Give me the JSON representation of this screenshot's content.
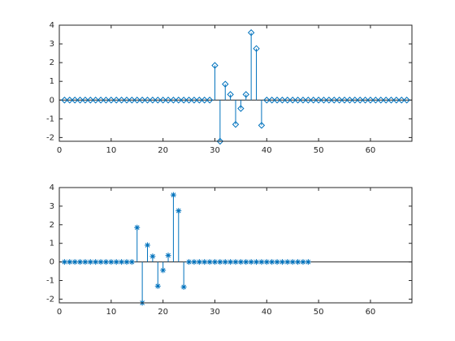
{
  "chart_data": [
    {
      "type": "stem",
      "marker": "diamond",
      "color": "#0072bd",
      "box": true,
      "x": [
        1,
        2,
        3,
        4,
        5,
        6,
        7,
        8,
        9,
        10,
        11,
        12,
        13,
        14,
        15,
        16,
        17,
        18,
        19,
        20,
        21,
        22,
        23,
        24,
        25,
        26,
        27,
        28,
        29,
        30,
        31,
        32,
        33,
        34,
        35,
        36,
        37,
        38,
        39,
        40,
        41,
        42,
        43,
        44,
        45,
        46,
        47,
        48,
        49,
        50,
        51,
        52,
        53,
        54,
        55,
        56,
        57,
        58,
        59,
        60,
        61,
        62,
        63,
        64,
        65,
        66,
        67
      ],
      "values": [
        0,
        0,
        0,
        0,
        0,
        0,
        0,
        0,
        0,
        0,
        0,
        0,
        0,
        0,
        0,
        0,
        0,
        0,
        0,
        0,
        0,
        0,
        0,
        0,
        0,
        0,
        0,
        0,
        0,
        1.85,
        -2.2,
        0.85,
        0.3,
        -1.3,
        -0.45,
        0.3,
        3.6,
        2.75,
        -1.35,
        0,
        0,
        0,
        0,
        0,
        0,
        0,
        0,
        0,
        0,
        0,
        0,
        0,
        0,
        0,
        0,
        0,
        0,
        0,
        0,
        0,
        0,
        0,
        0,
        0,
        0,
        0,
        0
      ],
      "xlim": [
        0,
        68
      ],
      "xticks": [
        0,
        10,
        20,
        30,
        40,
        50,
        60
      ],
      "ylim": [
        -2.2,
        4
      ],
      "yticks": [
        -2,
        -1,
        0,
        1,
        2,
        3,
        4
      ]
    },
    {
      "type": "stem",
      "marker": "asterisk",
      "color": "#0072bd",
      "box": true,
      "x": [
        1,
        2,
        3,
        4,
        5,
        6,
        7,
        8,
        9,
        10,
        11,
        12,
        13,
        14,
        15,
        16,
        17,
        18,
        19,
        20,
        21,
        22,
        23,
        24,
        25,
        26,
        27,
        28,
        29,
        30,
        31,
        32,
        33,
        34,
        35,
        36,
        37,
        38,
        39,
        40,
        41,
        42,
        43,
        44,
        45,
        46,
        47,
        48
      ],
      "values": [
        0,
        0,
        0,
        0,
        0,
        0,
        0,
        0,
        0,
        0,
        0,
        0,
        0,
        0,
        1.85,
        -2.2,
        0.9,
        0.3,
        -1.3,
        -0.45,
        0.35,
        3.6,
        2.75,
        -1.35,
        0,
        0,
        0,
        0,
        0,
        0,
        0,
        0,
        0,
        0,
        0,
        0,
        0,
        0,
        0,
        0,
        0,
        0,
        0,
        0,
        0,
        0,
        0,
        0
      ],
      "xlim": [
        0,
        68
      ],
      "xticks": [
        0,
        10,
        20,
        30,
        40,
        50,
        60
      ],
      "ylim": [
        -2.2,
        4
      ],
      "yticks": [
        -2,
        -1,
        0,
        1,
        2,
        3,
        4
      ]
    }
  ]
}
